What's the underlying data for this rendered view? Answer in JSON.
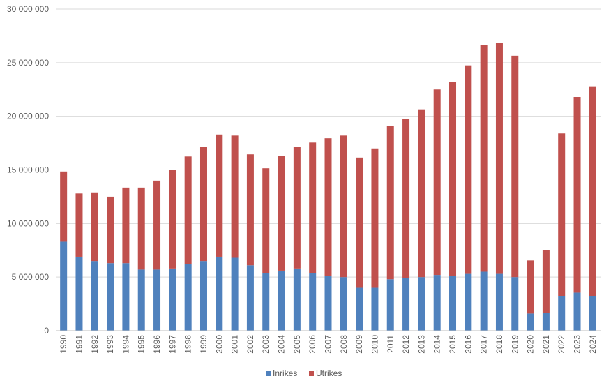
{
  "chart_data": {
    "type": "bar",
    "stacked": true,
    "categories": [
      "1990",
      "1991",
      "1992",
      "1993",
      "1994",
      "1995",
      "1996",
      "1997",
      "1998",
      "1999",
      "2000",
      "2001",
      "2002",
      "2003",
      "2004",
      "2005",
      "2006",
      "2007",
      "2008",
      "2009",
      "2010",
      "2011",
      "2012",
      "2013",
      "2014",
      "2015",
      "2016",
      "2017",
      "2018",
      "2019",
      "2020",
      "2021",
      "2022",
      "2023",
      "2024"
    ],
    "series": [
      {
        "name": "Inrikes",
        "color": "#4f81bd",
        "values": [
          8300000,
          6900000,
          6500000,
          6300000,
          6300000,
          5700000,
          5700000,
          5800000,
          6200000,
          6500000,
          6900000,
          6800000,
          6100000,
          5400000,
          5600000,
          5800000,
          5400000,
          5100000,
          5000000,
          4000000,
          4000000,
          4800000,
          4900000,
          5000000,
          5200000,
          5100000,
          5300000,
          5500000,
          5300000,
          5000000,
          1600000,
          1650000,
          3200000,
          3550000,
          3200000
        ]
      },
      {
        "name": "Utrikes",
        "color": "#c0504d",
        "values": [
          6550000,
          5900000,
          6400000,
          6200000,
          7050000,
          7650000,
          8300000,
          9200000,
          10050000,
          10650000,
          11400000,
          11400000,
          10350000,
          9750000,
          10700000,
          11350000,
          12150000,
          12850000,
          13200000,
          12150000,
          13000000,
          14300000,
          14850000,
          15650000,
          17300000,
          18100000,
          19450000,
          21150000,
          21550000,
          20650000,
          4950000,
          5850000,
          15200000,
          18250000,
          19600000
        ]
      }
    ],
    "ylim": [
      0,
      30000000
    ],
    "yticks": [
      0,
      5000000,
      10000000,
      15000000,
      20000000,
      25000000,
      30000000
    ],
    "ytick_labels": [
      "0",
      "5 000 000",
      "10 000 000",
      "15 000 000",
      "20 000 000",
      "25 000 000",
      "30 000 000"
    ],
    "grid": true,
    "legend_position": "bottom"
  }
}
